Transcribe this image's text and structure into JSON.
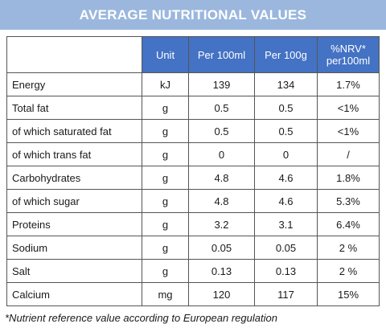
{
  "title": "AVERAGE NUTRITIONAL VALUES",
  "table": {
    "headers": {
      "unit": "Unit",
      "per100ml": "Per 100ml",
      "per100g": "Per 100g",
      "nrv_line1": "%NRV*",
      "nrv_line2": "per100ml"
    },
    "rows": [
      {
        "name": "Energy",
        "unit": "kJ",
        "per100ml": "139",
        "per100g": "134",
        "nrv": "1.7%"
      },
      {
        "name": "Total fat",
        "unit": "g",
        "per100ml": "0.5",
        "per100g": "0.5",
        "nrv": "<1%"
      },
      {
        "name": "of which saturated fat",
        "unit": "g",
        "per100ml": "0.5",
        "per100g": "0.5",
        "nrv": "<1%"
      },
      {
        "name": "of which trans fat",
        "unit": "g",
        "per100ml": "0",
        "per100g": "0",
        "nrv": "/"
      },
      {
        "name": "Carbohydrates",
        "unit": "g",
        "per100ml": "4.8",
        "per100g": "4.6",
        "nrv": "1.8%"
      },
      {
        "name": "of which sugar",
        "unit": "g",
        "per100ml": "4.8",
        "per100g": "4.6",
        "nrv": "5.3%"
      },
      {
        "name": "Proteins",
        "unit": "g",
        "per100ml": "3.2",
        "per100g": "3.1",
        "nrv": "6.4%"
      },
      {
        "name": "Sodium",
        "unit": "g",
        "per100ml": "0.05",
        "per100g": "0.05",
        "nrv": "2 %"
      },
      {
        "name": "Salt",
        "unit": "g",
        "per100ml": "0.13",
        "per100g": "0.13",
        "nrv": "2 %"
      },
      {
        "name": "Calcium",
        "unit": "mg",
        "per100ml": "120",
        "per100g": "117",
        "nrv": "15%"
      }
    ]
  },
  "footnote": "*Nutrient reference value according to European regulation",
  "colors": {
    "banner": "#9bb7dd",
    "header": "#4472c4",
    "border": "#555555"
  }
}
